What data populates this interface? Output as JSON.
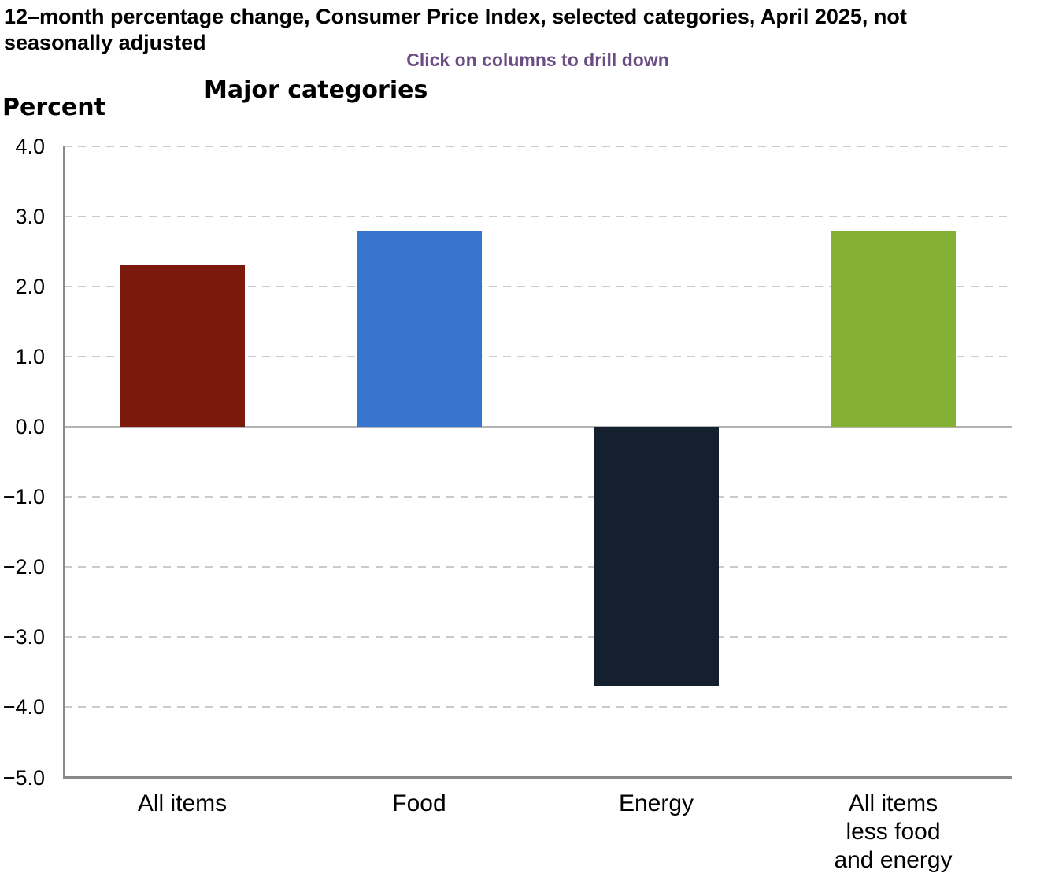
{
  "header": {
    "title": "12–month percentage change, Consumer Price Index, selected categories, April 2025, not seasonally adjusted",
    "drill_hint": "Click on columns to drill down",
    "axis_unit": "Percent",
    "chart_title": "Major categories"
  },
  "colors": {
    "hint_purple": "#6A4D82",
    "grid_gray": "#CBCBCB",
    "zero_line_gray": "#B3B3B3",
    "axis_gray": "#8A8A8A"
  },
  "chart_data": {
    "type": "bar",
    "title": "Major categories",
    "categories": [
      "All items",
      "Food",
      "Energy",
      "All items less food and energy"
    ],
    "category_display_lines": [
      [
        "All items"
      ],
      [
        "Food"
      ],
      [
        "Energy"
      ],
      [
        "All items",
        "less food",
        "and energy"
      ]
    ],
    "values": [
      2.3,
      2.8,
      -3.7,
      2.8
    ],
    "bar_colors": [
      "#7B1A0C",
      "#3674CE",
      "#15202E",
      "#84B134"
    ],
    "xlabel": "",
    "ylabel": "Percent",
    "ylim": [
      -5.0,
      4.0
    ],
    "y_tick_step": 1.0,
    "y_tick_labels": [
      "4.0",
      "3.0",
      "2.0",
      "1.0",
      "0.0",
      "−1.0",
      "−2.0",
      "−3.0",
      "−4.0",
      "−5.0"
    ],
    "grid": "horizontal-dashed",
    "legend": "none",
    "note": "columns are clickable to drill down"
  }
}
